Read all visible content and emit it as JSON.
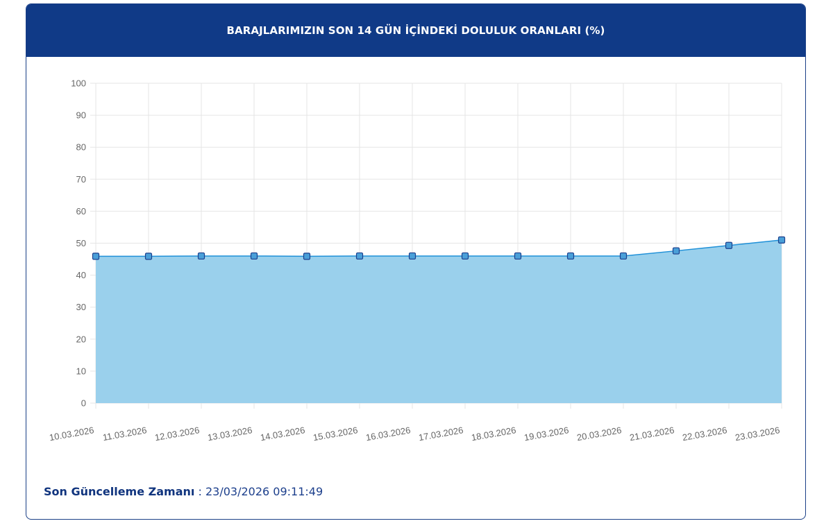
{
  "header": {
    "title": "BARAJLARIMIZIN SON 14 GÜN İÇİNDEKİ DOLULUK ORANLARI (%)"
  },
  "footer": {
    "label": "Son Güncelleme Zamanı",
    "separator": " : ",
    "value": "23/03/2026 09:11:49"
  },
  "colors": {
    "header_bg": "#103a87",
    "area_fill": "#9ad0ec",
    "line": "#1e90d8",
    "marker_fill": "#4a9fd8",
    "marker_stroke": "#1c3f8c",
    "grid": "#e5e5e5"
  },
  "chart_data": {
    "type": "area",
    "title": "BARAJLARIMIZIN SON 14 GÜN İÇİNDEKİ DOLULUK ORANLARI (%)",
    "xlabel": "",
    "ylabel": "",
    "ylim": [
      0,
      100
    ],
    "yticks": [
      0,
      10,
      20,
      30,
      40,
      50,
      60,
      70,
      80,
      90,
      100
    ],
    "grid": true,
    "legend": "none",
    "categories": [
      "10.03.2026",
      "11.03.2026",
      "12.03.2026",
      "13.03.2026",
      "14.03.2026",
      "15.03.2026",
      "16.03.2026",
      "17.03.2026",
      "18.03.2026",
      "19.03.2026",
      "20.03.2026",
      "21.03.2026",
      "22.03.2026",
      "23.03.2026"
    ],
    "values": [
      45.9,
      45.9,
      46.0,
      46.0,
      45.9,
      46.0,
      46.0,
      46.0,
      46.0,
      46.0,
      46.0,
      47.6,
      49.3,
      51.0
    ]
  }
}
